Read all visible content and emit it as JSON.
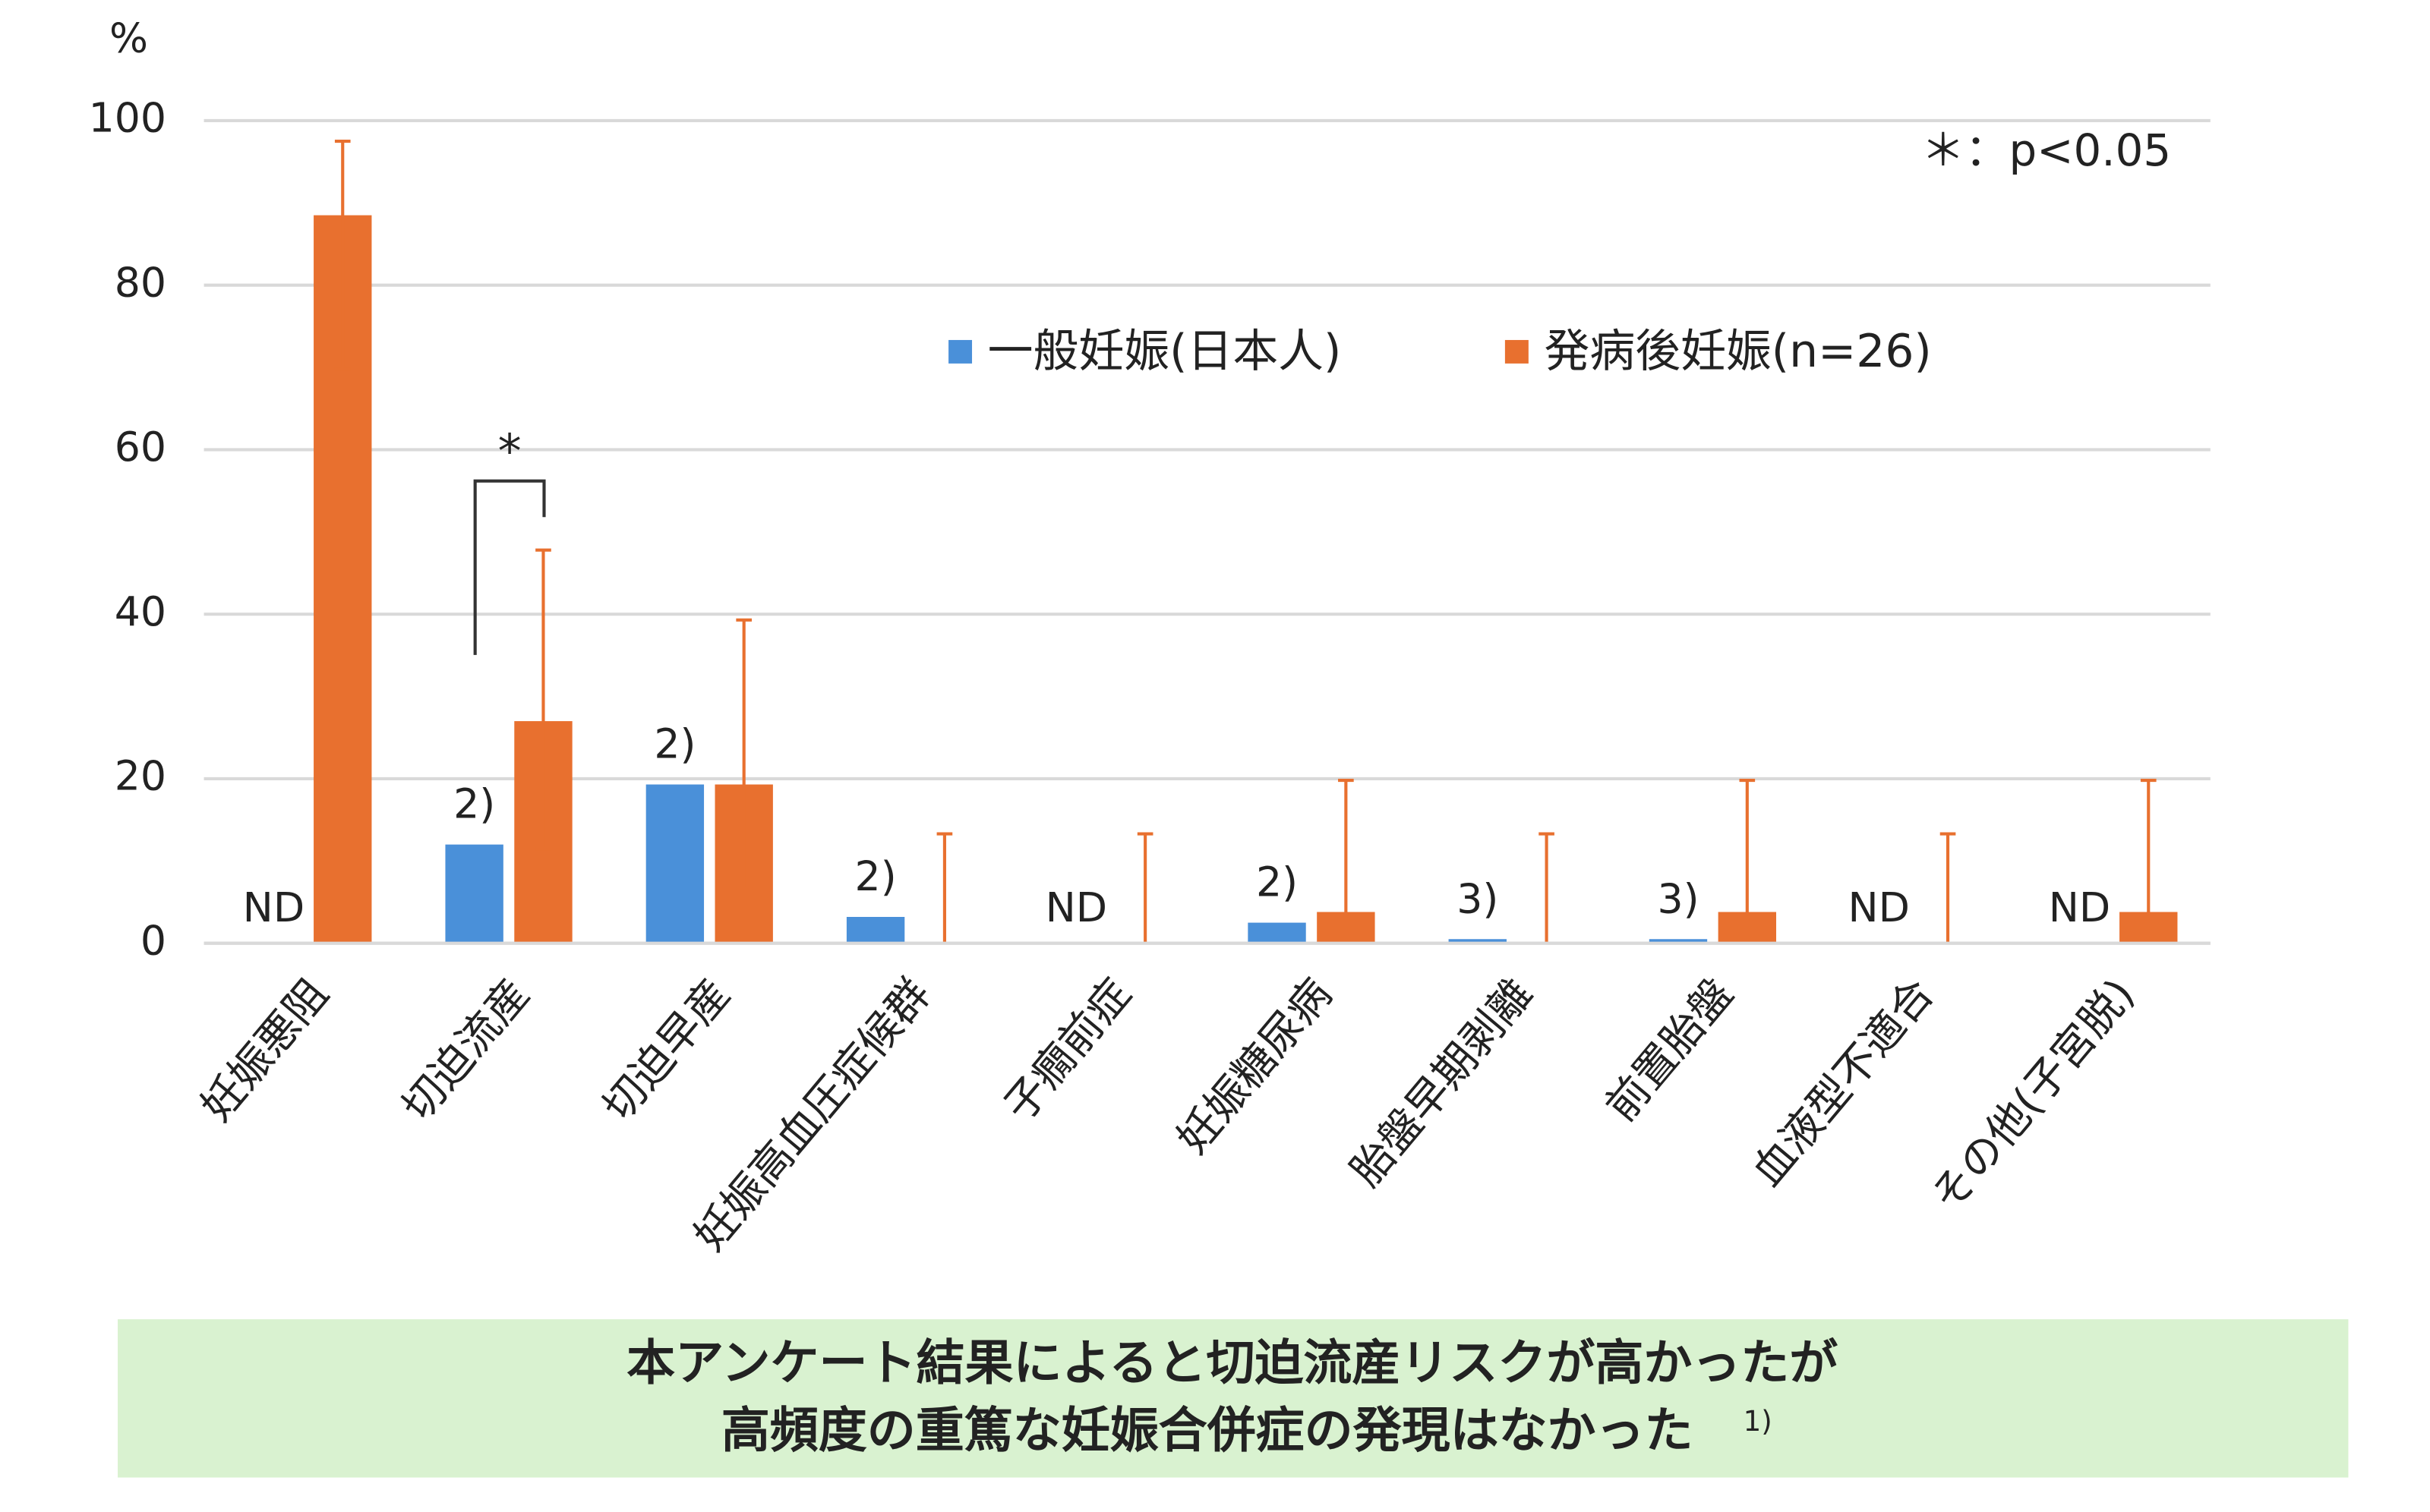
{
  "chart_data": {
    "type": "bar",
    "y_label": "%",
    "annotation": "＊：p<0.05",
    "categories": [
      "妊娠悪阻",
      "切迫流産",
      "切迫早産",
      "妊娠高血圧症候群",
      "子癇前症",
      "妊娠糖尿病",
      "胎盤早期剥離",
      "前置胎盤",
      "血液型不適合",
      "その他(子宮脱)"
    ],
    "series": [
      {
        "name": "一般妊娠(日本人)",
        "color": "#4a90d9",
        "values": [
          null,
          12,
          19.3,
          3.2,
          null,
          2.5,
          0.5,
          0.5,
          null,
          null
        ],
        "notes": [
          "ND",
          "2)",
          "2)",
          "2)",
          "ND",
          "2)",
          "3)",
          "3)",
          "ND",
          "ND"
        ]
      },
      {
        "name": "発病後妊娠(n=26)",
        "color": "#e8702f",
        "values": [
          88.5,
          27,
          19.3,
          0,
          0,
          3.8,
          0,
          3.8,
          0,
          3.8
        ],
        "error_plus": [
          9,
          20.8,
          20,
          13.3,
          13.3,
          16,
          13.3,
          16,
          13.3,
          16
        ],
        "error_minus": [
          18.7,
          15.5,
          12.6,
          null,
          null,
          null,
          null,
          null,
          null,
          null
        ]
      }
    ],
    "significance": {
      "category": 1,
      "label": "*"
    },
    "ylim": [
      0,
      100
    ],
    "yticks": [
      0,
      20,
      40,
      60,
      80,
      100
    ],
    "grid": true
  },
  "footer": {
    "lines": [
      "本アンケート結果によると切迫流産リスクが高かったが",
      "高頻度の重篤な妊娠合併症の発現はなかった"
    ],
    "reference": "1)"
  }
}
